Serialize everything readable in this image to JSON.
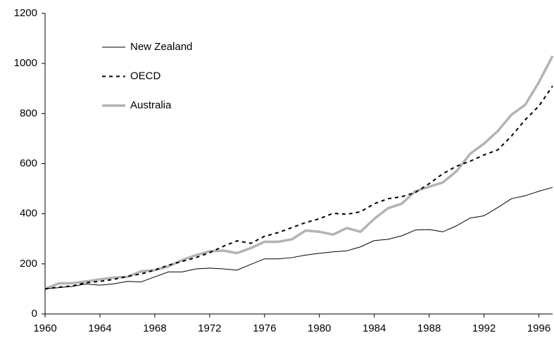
{
  "chart_data": {
    "type": "line",
    "x": [
      1960,
      1961,
      1962,
      1963,
      1964,
      1965,
      1966,
      1967,
      1968,
      1969,
      1970,
      1971,
      1972,
      1973,
      1974,
      1975,
      1976,
      1977,
      1978,
      1979,
      1980,
      1981,
      1982,
      1983,
      1984,
      1985,
      1986,
      1987,
      1988,
      1989,
      1990,
      1991,
      1992,
      1993,
      1994,
      1995,
      1996,
      1997
    ],
    "series": [
      {
        "name": "New Zealand",
        "color": "#000000",
        "line_style": "solid",
        "values": [
          100,
          105,
          110,
          120,
          115,
          120,
          130,
          128,
          148,
          168,
          168,
          180,
          183,
          180,
          175,
          198,
          220,
          220,
          225,
          235,
          242,
          248,
          252,
          268,
          293,
          298,
          312,
          335,
          337,
          328,
          352,
          383,
          392,
          425,
          460,
          472,
          490,
          505
        ]
      },
      {
        "name": "OECD",
        "color": "#000000",
        "line_style": "dashed",
        "values": [
          100,
          107,
          112,
          125,
          130,
          138,
          150,
          160,
          175,
          195,
          210,
          225,
          245,
          270,
          292,
          282,
          310,
          325,
          345,
          365,
          380,
          402,
          398,
          408,
          440,
          460,
          468,
          485,
          520,
          560,
          590,
          610,
          635,
          655,
          710,
          775,
          830,
          910
        ]
      },
      {
        "name": "Australia",
        "color": "#b3b3b3",
        "line_style": "thick",
        "values": [
          100,
          122,
          123,
          130,
          138,
          145,
          148,
          170,
          175,
          190,
          215,
          235,
          250,
          253,
          243,
          263,
          288,
          288,
          298,
          333,
          328,
          317,
          343,
          328,
          380,
          422,
          440,
          490,
          508,
          525,
          570,
          640,
          680,
          730,
          795,
          835,
          925,
          1030
        ]
      }
    ],
    "xlim": [
      1960,
      1997
    ],
    "xticks": [
      1960,
      1964,
      1968,
      1972,
      1976,
      1980,
      1984,
      1988,
      1992,
      1996
    ],
    "ylim": [
      0,
      1200
    ],
    "yticks": [
      0,
      200,
      400,
      600,
      800,
      1000,
      1200
    ],
    "grid": false,
    "legend": "upper-left"
  }
}
